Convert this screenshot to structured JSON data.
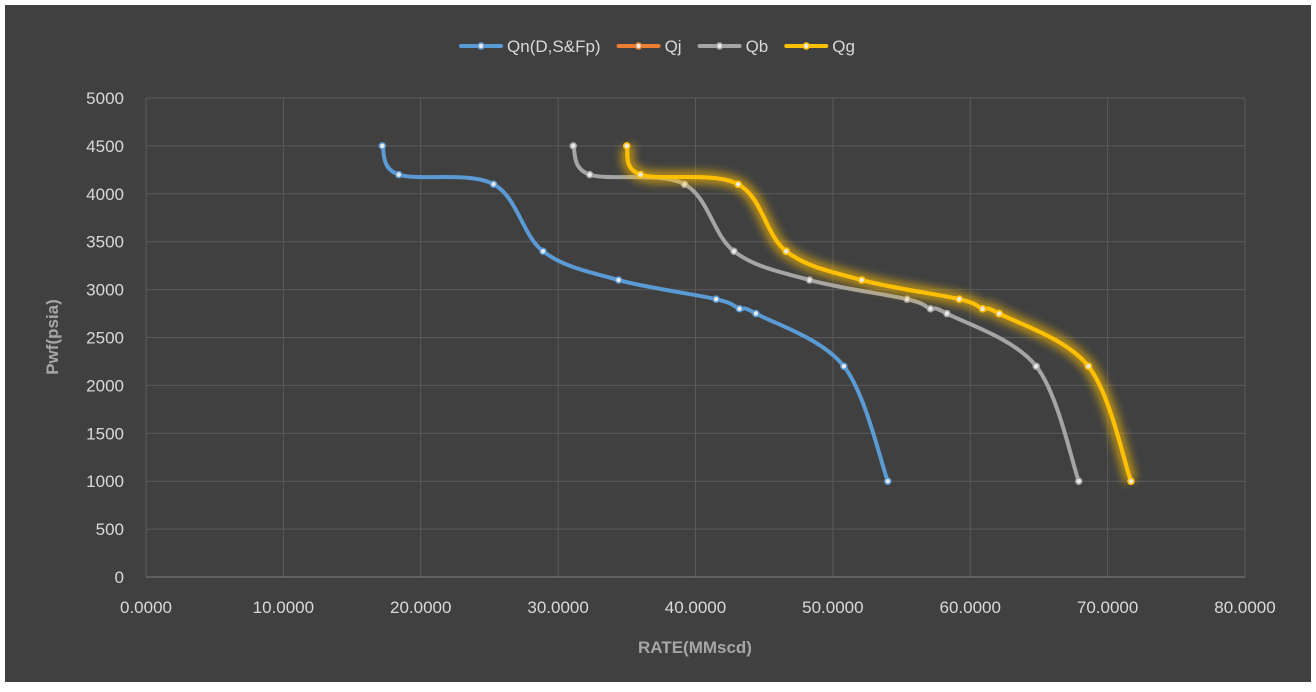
{
  "chart_data": {
    "type": "line",
    "title": "",
    "xlabel": "RATE(MMscd)",
    "ylabel": "Pwf(psia)",
    "xlim": [
      0,
      80
    ],
    "ylim": [
      0,
      5000
    ],
    "x_ticks": [
      "0.0000",
      "10.0000",
      "20.0000",
      "30.0000",
      "40.0000",
      "50.0000",
      "60.0000",
      "70.0000",
      "80.0000"
    ],
    "y_ticks": [
      "0",
      "500",
      "1000",
      "1500",
      "2000",
      "2500",
      "3000",
      "3500",
      "4000",
      "4500",
      "5000"
    ],
    "grid": true,
    "legend_position": "top",
    "colors": {
      "background": "#404040",
      "grid": "#5a5a5a",
      "axis_text": "#d9d9d9",
      "axis_title": "#a6a6a6"
    },
    "series": [
      {
        "name": "Qn(D,S&Fp)",
        "color": "#5b9bd5",
        "glow": false,
        "points": [
          {
            "x": 17.2,
            "y": 4500
          },
          {
            "x": 18.4,
            "y": 4200
          },
          {
            "x": 25.3,
            "y": 4100
          },
          {
            "x": 28.9,
            "y": 3400
          },
          {
            "x": 34.4,
            "y": 3100
          },
          {
            "x": 41.5,
            "y": 2900
          },
          {
            "x": 43.2,
            "y": 2800
          },
          {
            "x": 44.4,
            "y": 2750
          },
          {
            "x": 50.8,
            "y": 2200
          },
          {
            "x": 54.0,
            "y": 1000
          }
        ]
      },
      {
        "name": "Qj",
        "color": "#ed7d31",
        "glow": false,
        "points": [
          {
            "x": 35.0,
            "y": 4500
          },
          {
            "x": 36.0,
            "y": 4200
          },
          {
            "x": 43.1,
            "y": 4100
          },
          {
            "x": 46.6,
            "y": 3400
          },
          {
            "x": 52.1,
            "y": 3100
          },
          {
            "x": 59.2,
            "y": 2900
          },
          {
            "x": 60.9,
            "y": 2800
          },
          {
            "x": 62.1,
            "y": 2750
          },
          {
            "x": 68.6,
            "y": 2200
          },
          {
            "x": 71.7,
            "y": 1000
          }
        ]
      },
      {
        "name": "Qb",
        "color": "#a5a5a5",
        "glow": false,
        "points": [
          {
            "x": 31.1,
            "y": 4500
          },
          {
            "x": 32.3,
            "y": 4200
          },
          {
            "x": 39.2,
            "y": 4100
          },
          {
            "x": 42.8,
            "y": 3400
          },
          {
            "x": 48.3,
            "y": 3100
          },
          {
            "x": 55.4,
            "y": 2900
          },
          {
            "x": 57.1,
            "y": 2800
          },
          {
            "x": 58.3,
            "y": 2750
          },
          {
            "x": 64.8,
            "y": 2200
          },
          {
            "x": 67.9,
            "y": 1000
          }
        ]
      },
      {
        "name": "Qg",
        "color": "#ffc000",
        "glow": true,
        "points": [
          {
            "x": 35.0,
            "y": 4500
          },
          {
            "x": 36.0,
            "y": 4200
          },
          {
            "x": 43.1,
            "y": 4100
          },
          {
            "x": 46.6,
            "y": 3400
          },
          {
            "x": 52.1,
            "y": 3100
          },
          {
            "x": 59.2,
            "y": 2900
          },
          {
            "x": 60.9,
            "y": 2800
          },
          {
            "x": 62.1,
            "y": 2750
          },
          {
            "x": 68.6,
            "y": 2200
          },
          {
            "x": 71.7,
            "y": 1000
          }
        ]
      }
    ]
  }
}
